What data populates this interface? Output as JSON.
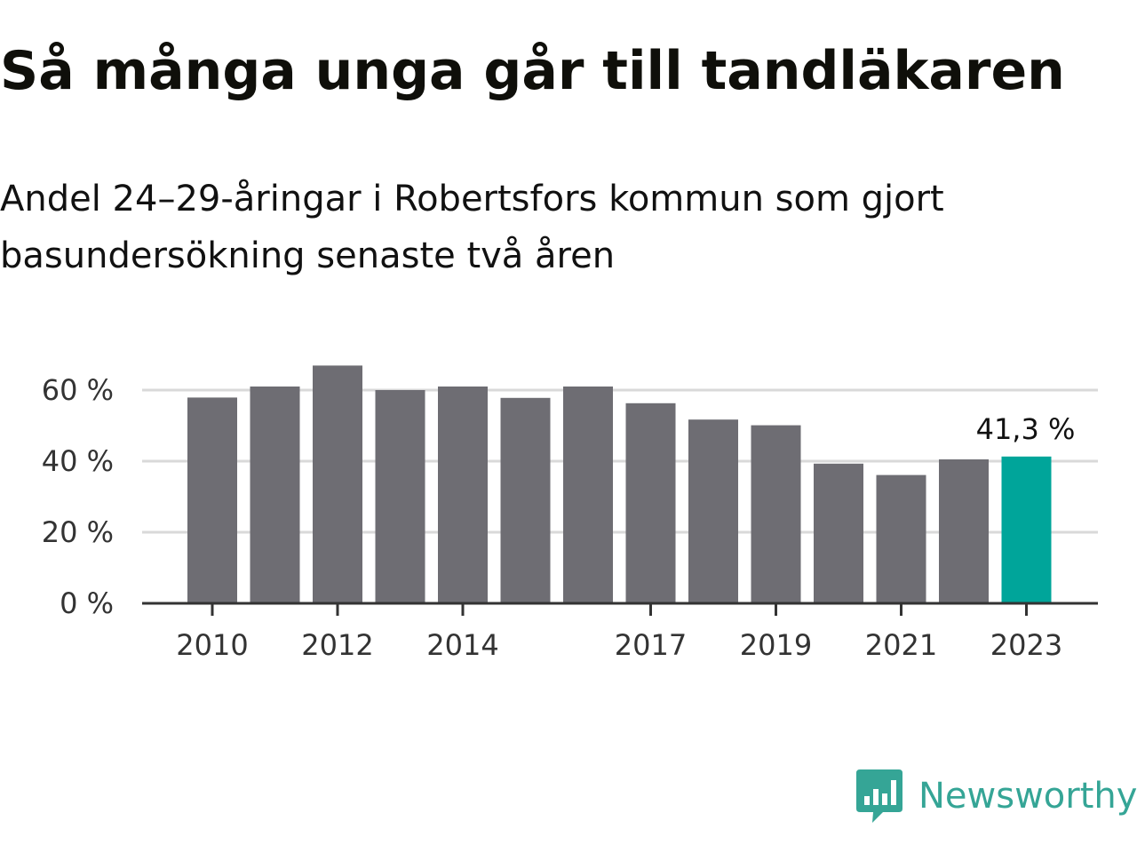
{
  "colors": {
    "bar": "#6e6d73",
    "highlight": "#00a59a",
    "grid": "#d9d9d9",
    "axis": "#333333",
    "brand": "#35a596"
  },
  "brand": {
    "name": "Newsworthy",
    "icon": "newsworthy-logo-icon"
  },
  "chart_data": {
    "type": "bar",
    "title": "Så många unga går till tandläkaren",
    "subtitle": "Andel 24–29-åringar i Robertsfors kommun som gjort basundersökning senaste två åren",
    "x": [
      2010,
      2011,
      2012,
      2013,
      2014,
      2015,
      2016,
      2017,
      2018,
      2019,
      2020,
      2021,
      2022,
      2023
    ],
    "values": [
      57.9,
      61.0,
      66.9,
      60.0,
      61.0,
      57.8,
      61.0,
      56.3,
      51.7,
      50.1,
      39.3,
      36.1,
      40.5,
      41.3
    ],
    "unit": "%",
    "x_tick_labels": [
      "2010",
      "2012",
      "2014",
      "2017",
      "2019",
      "2021",
      "2023"
    ],
    "y_ticks": [
      0,
      20,
      40,
      60
    ],
    "y_tick_labels": [
      "0 %",
      "20 %",
      "40 %",
      "60 %"
    ],
    "ylim": [
      0,
      67
    ],
    "highlight_index": 13,
    "highlight_label": "41,3 %",
    "grid": true,
    "legend": "none"
  }
}
